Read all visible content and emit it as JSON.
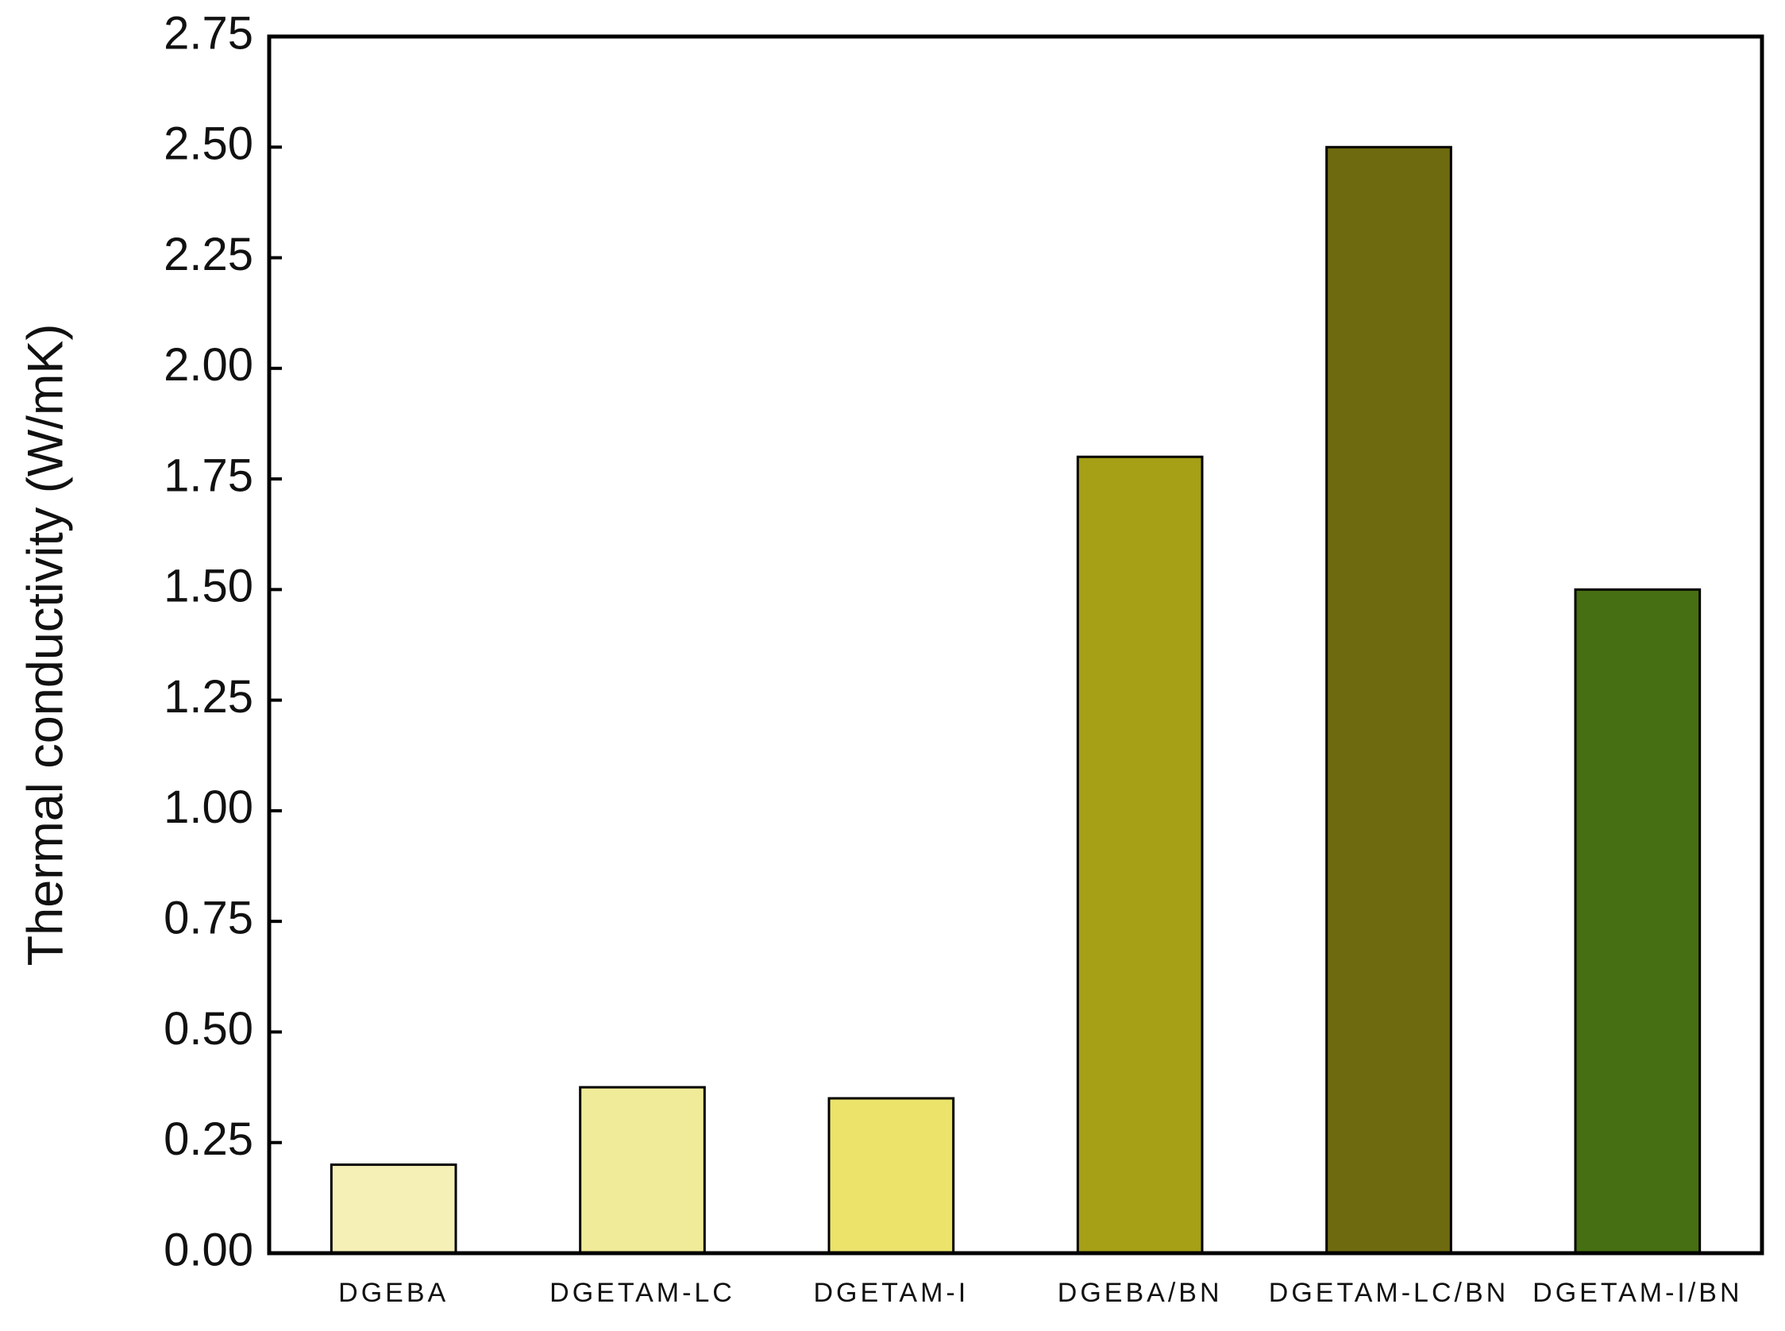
{
  "chart_data": {
    "type": "bar",
    "y_label": "Thermal conductivity (W/mK)",
    "categories": [
      "DGEBA",
      "DGETAM-LC",
      "DGETAM-I",
      "DGEBA/BN",
      "DGETAM-LC/BN",
      "DGETAM-I/BN"
    ],
    "values": [
      0.2,
      0.375,
      0.35,
      1.8,
      2.5,
      1.5
    ],
    "colors": [
      "#f5f0b6",
      "#f0eb98",
      "#ece36b",
      "#a5a016",
      "#6e6a10",
      "#466e12"
    ],
    "ylim": [
      0,
      2.75
    ],
    "yticks": [
      {
        "value": 0,
        "label": "0.00"
      },
      0.25,
      {
        "value": 0.5,
        "label": "0.50"
      },
      0.75,
      {
        "value": 1,
        "label": "1.00"
      },
      1.25,
      {
        "value": 1.5,
        "label": "1.50"
      },
      1.75,
      {
        "value": 2,
        "label": "2.00"
      },
      2.25,
      {
        "value": 2.5,
        "label": "2.50"
      },
      2.75
    ],
    "grid": false
  }
}
